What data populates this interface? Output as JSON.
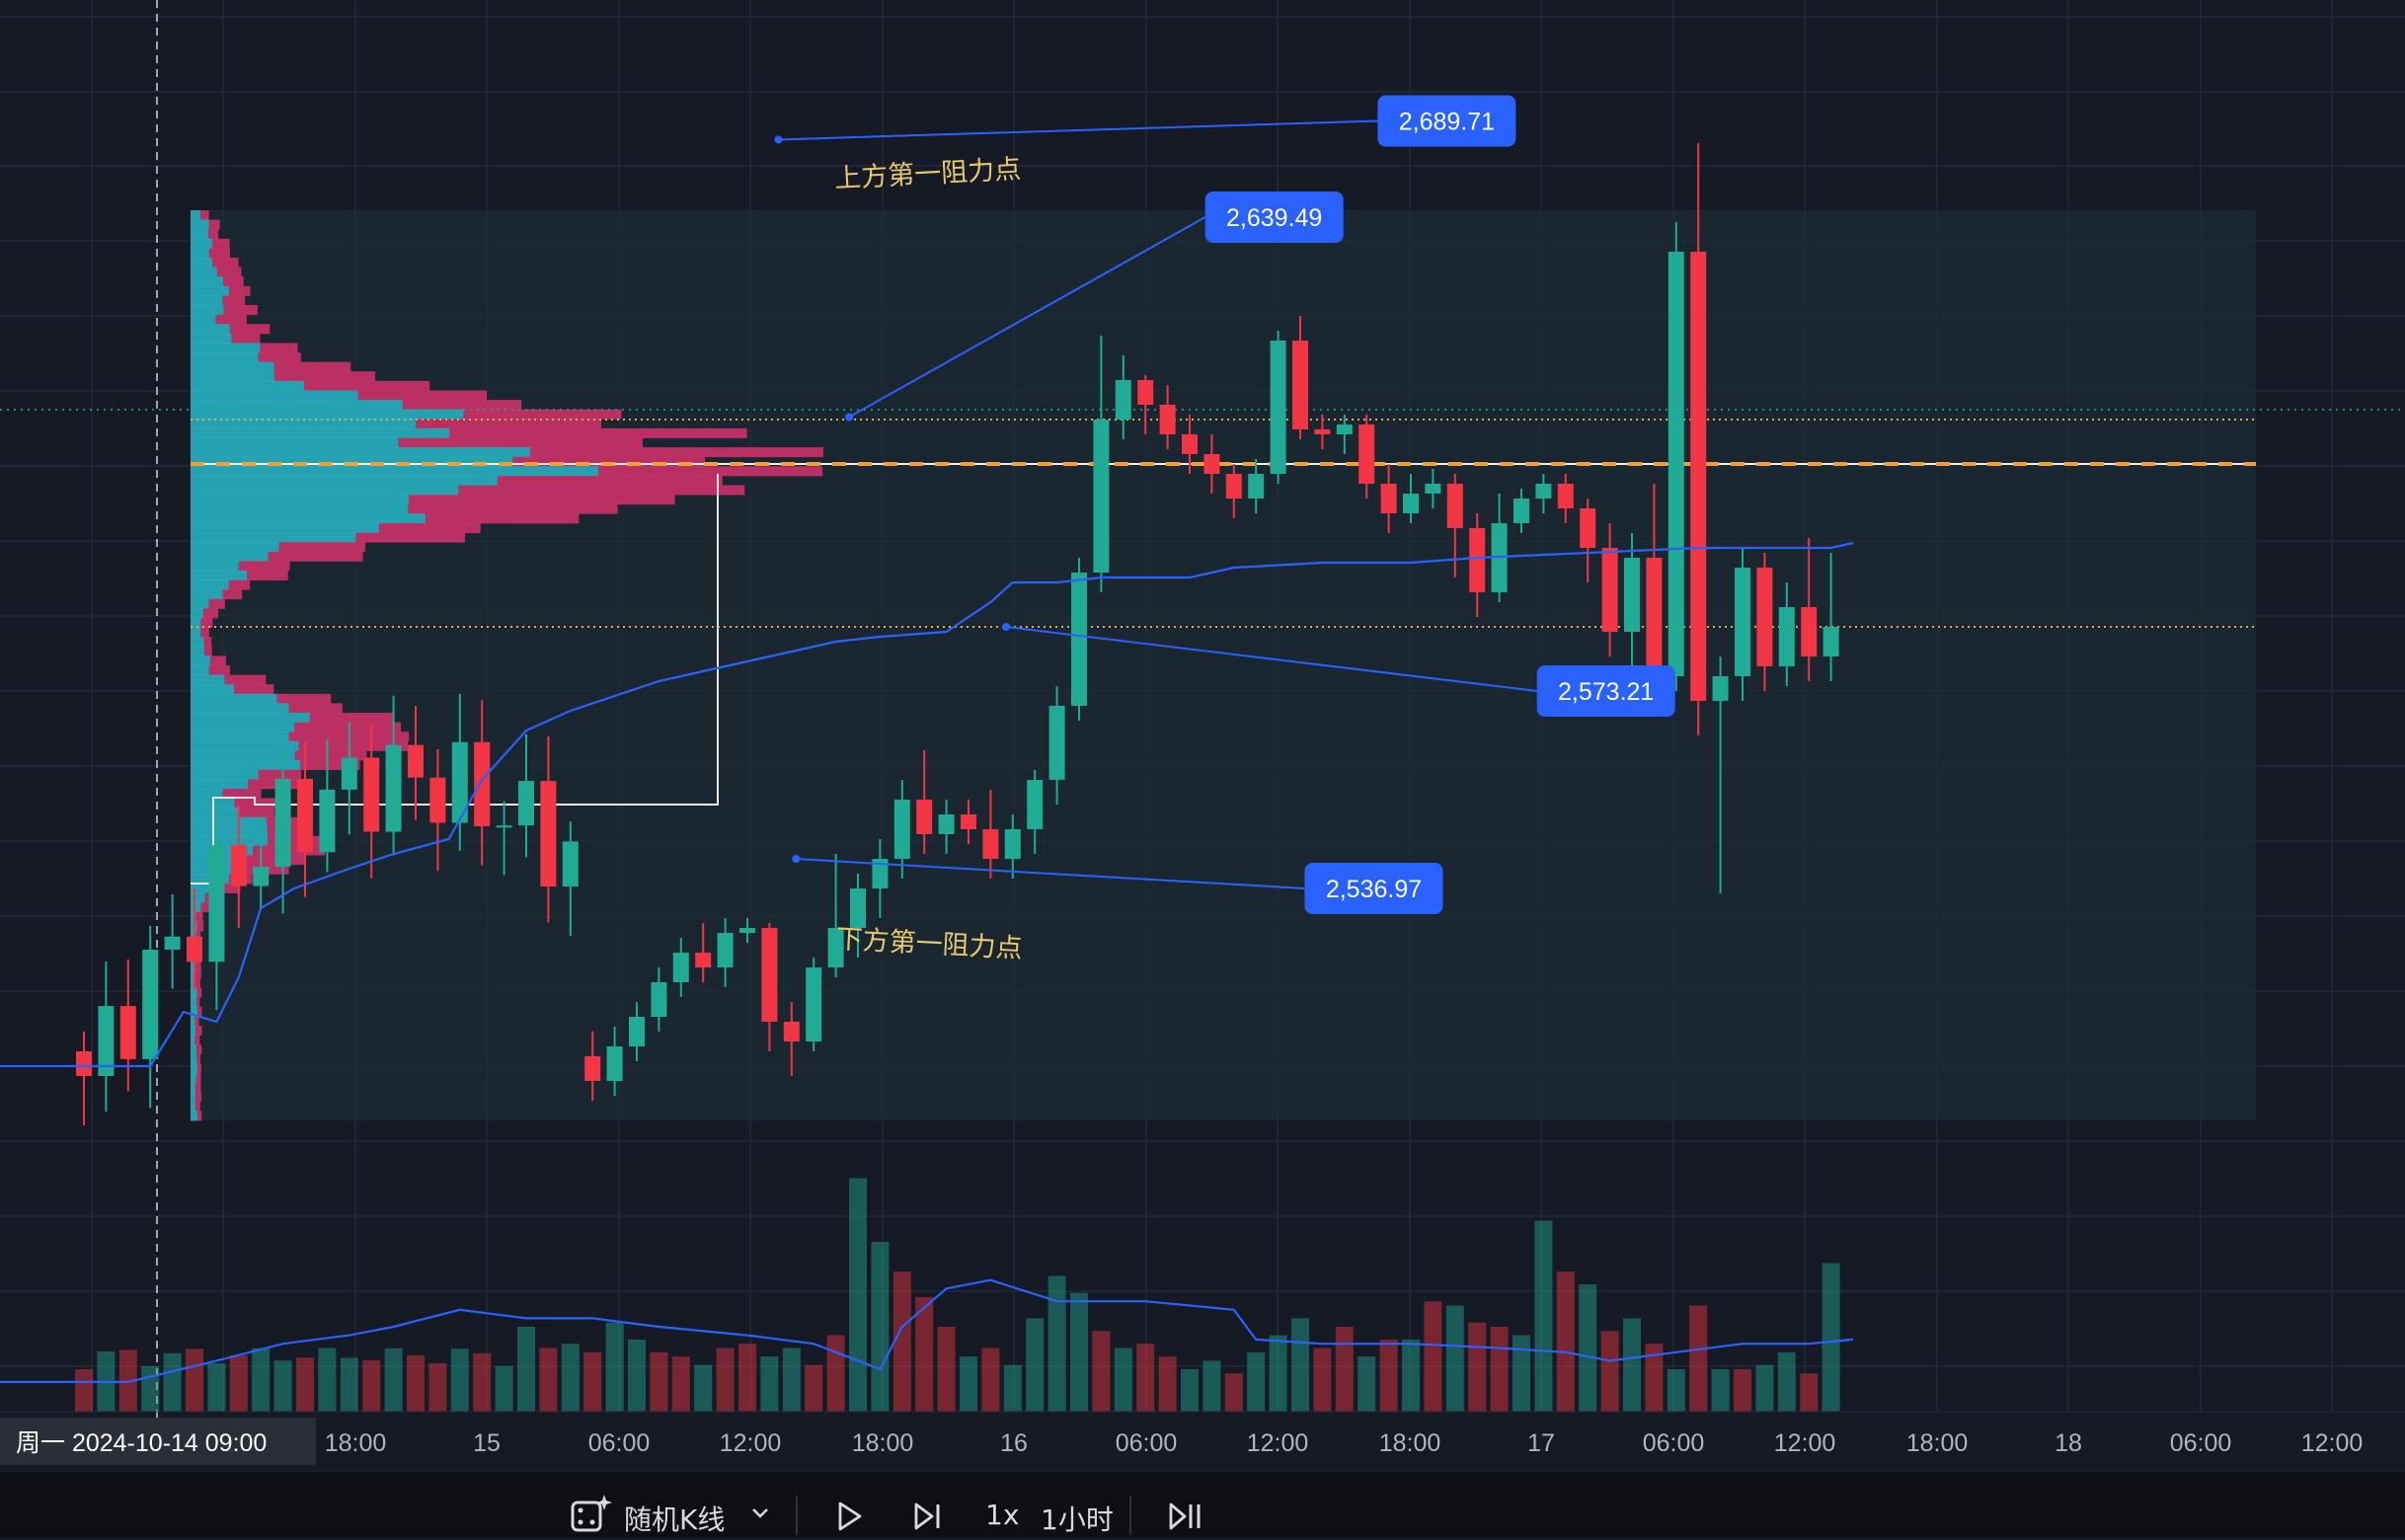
{
  "chart_data": {
    "type": "candlestick",
    "interval": "1小时",
    "y_range": [
      2488,
      2718
    ],
    "x_range": [
      -3.8,
      80.5
    ],
    "x_ticks": [
      {
        "label": "18:00"
      },
      {
        "label": "15"
      },
      {
        "label": "06:00"
      },
      {
        "label": "12:00"
      },
      {
        "label": "18:00"
      },
      {
        "label": "16"
      },
      {
        "label": "06:00"
      },
      {
        "label": "12:00"
      },
      {
        "label": "18:00"
      },
      {
        "label": "17"
      },
      {
        "label": "06:00"
      },
      {
        "label": "12:00"
      },
      {
        "label": "18:00"
      },
      {
        "label": "18"
      },
      {
        "label": "06:00"
      },
      {
        "label": "12:00"
      }
    ],
    "crosshair_label": "周一 2024-10-14   09:00",
    "colors": {
      "up": "#22ab94",
      "down": "#f23645",
      "ma": "#2962ff",
      "badge": "#2962ff",
      "label": "#e6c86e",
      "dotted_level": "#d7b24a",
      "poc": "#f2a033",
      "profile_up": "#27b8c8",
      "profile_down": "#d6336c",
      "range_box": "#1d2b33"
    },
    "candles": [
      [
        2504,
        2499,
        2509,
        2495,
        22
      ],
      [
        2499,
        2506,
        2510,
        2496,
        20
      ],
      [
        2506,
        2512,
        2515,
        2503,
        18
      ],
      [
        2512,
        2519,
        2522,
        2509,
        16
      ],
      [
        2519,
        2525,
        2528,
        2516,
        20
      ],
      [
        2525,
        2522,
        2531,
        2519,
        22
      ],
      [
        2522,
        2529,
        2532,
        2518,
        28
      ],
      [
        2529,
        2530,
        2532,
        2527,
        14
      ],
      [
        2530,
        2511,
        2531,
        2505,
        20
      ],
      [
        2511,
        2507,
        2515,
        2500,
        18
      ],
      [
        2507,
        2522,
        2524,
        2505,
        24
      ],
      [
        2522,
        2530,
        2545,
        2520,
        108
      ],
      [
        2530,
        2538,
        2541,
        2524,
        84
      ],
      [
        2538,
        2544,
        2548,
        2532,
        52
      ],
      [
        2544,
        2556,
        2560,
        2540,
        36
      ],
      [
        2556,
        2549,
        2566,
        2545,
        40
      ],
      [
        2549,
        2553,
        2556,
        2545,
        34
      ],
      [
        2553,
        2550,
        2556,
        2547,
        28
      ],
      [
        2550,
        2544,
        2558,
        2540,
        24
      ],
      [
        2544,
        2550,
        2553,
        2540,
        20
      ],
      [
        2550,
        2560,
        2562,
        2545,
        30
      ],
      [
        2560,
        2575,
        2579,
        2555,
        46
      ],
      [
        2575,
        2602,
        2605,
        2572,
        62
      ],
      [
        2602,
        2633,
        2650,
        2598,
        136
      ],
      [
        2633,
        2641,
        2646,
        2629,
        82
      ],
      [
        2641,
        2636,
        2642,
        2630,
        40
      ],
      [
        2636,
        2630,
        2640,
        2627,
        46
      ],
      [
        2630,
        2626,
        2634,
        2622,
        40
      ],
      [
        2626,
        2622,
        2630,
        2618,
        32
      ],
      [
        2622,
        2617,
        2624,
        2613,
        24
      ],
      [
        2617,
        2622,
        2625,
        2614,
        22
      ],
      [
        2622,
        2649,
        2651,
        2620,
        34
      ],
      [
        2649,
        2631,
        2654,
        2629,
        30
      ],
      [
        2631,
        2630,
        2634,
        2627,
        26
      ],
      [
        2630,
        2632,
        2634,
        2626,
        30
      ],
      [
        2632,
        2620,
        2634,
        2617,
        28
      ],
      [
        2620,
        2614,
        2624,
        2610,
        26
      ],
      [
        2614,
        2618,
        2622,
        2612,
        32
      ],
      [
        2618,
        2620,
        2623,
        2615,
        30
      ],
      [
        2620,
        2611,
        2622,
        2601,
        26
      ],
      [
        2611,
        2598,
        2614,
        2593,
        36
      ],
      [
        2598,
        2612,
        2618,
        2596,
        40
      ],
      [
        2612,
        2617,
        2619,
        2610,
        20
      ],
      [
        2617,
        2620,
        2622,
        2614,
        16
      ],
      [
        2620,
        2615,
        2622,
        2612,
        18
      ],
      [
        2615,
        2607,
        2617,
        2600,
        34
      ],
      [
        2607,
        2590,
        2612,
        2585,
        28
      ],
      [
        2590,
        2605,
        2610,
        2580,
        36
      ],
      [
        2605,
        2581,
        2620,
        2575,
        92
      ],
      [
        2581,
        2667,
        2673,
        2578,
        210
      ],
      [
        2667,
        2576,
        2689,
        2569,
        260
      ],
      [
        2576,
        2581,
        2585,
        2537,
        188
      ],
      [
        2581,
        2603,
        2607,
        2576,
        112
      ],
      [
        2603,
        2583,
        2606,
        2578,
        74
      ],
      [
        2583,
        2595,
        2600,
        2579,
        50
      ],
      [
        2595,
        2585,
        2609,
        2580,
        42
      ],
      [
        2585,
        2591,
        2606,
        2580,
        48
      ]
    ],
    "volume_tail": [
      [
        1,
        40
      ],
      [
        0,
        30
      ],
      [
        1,
        32
      ],
      [
        0,
        28
      ],
      [
        1,
        42
      ],
      [
        1,
        34
      ],
      [
        0,
        28
      ],
      [
        0,
        26
      ],
      [
        1,
        22
      ],
      [
        0,
        30
      ],
      [
        0,
        32
      ],
      [
        1,
        26
      ],
      [
        1,
        30
      ],
      [
        0,
        22
      ],
      [
        0,
        36
      ],
      [
        1,
        110
      ],
      [
        1,
        80
      ],
      [
        0,
        66
      ],
      [
        0,
        54
      ],
      [
        0,
        40
      ],
      [
        1,
        26
      ],
      [
        0,
        30
      ],
      [
        1,
        22
      ],
      [
        1,
        44
      ],
      [
        1,
        64
      ],
      [
        1,
        56
      ],
      [
        0,
        38
      ],
      [
        1,
        30
      ],
      [
        0,
        32
      ],
      [
        0,
        26
      ],
      [
        1,
        20
      ],
      [
        1,
        24
      ],
      [
        0,
        18
      ],
      [
        1,
        28
      ],
      [
        1,
        36
      ],
      [
        1,
        44
      ],
      [
        0,
        30
      ],
      [
        0,
        40
      ],
      [
        1,
        26
      ],
      [
        0,
        34
      ],
      [
        1,
        34
      ],
      [
        0,
        52
      ],
      [
        1,
        50
      ],
      [
        0,
        42
      ],
      [
        0,
        40
      ],
      [
        1,
        36
      ],
      [
        1,
        90
      ],
      [
        0,
        66
      ],
      [
        1,
        60
      ],
      [
        0,
        38
      ],
      [
        1,
        44
      ],
      [
        0,
        32
      ],
      [
        1,
        20
      ],
      [
        0,
        50
      ],
      [
        1,
        20
      ],
      [
        0,
        20
      ],
      [
        1,
        22
      ],
      [
        1,
        28
      ],
      [
        0,
        18
      ],
      [
        1,
        70
      ]
    ],
    "ma_line": [
      [
        -3.8,
        2502
      ],
      [
        3,
        2502
      ],
      [
        4.5,
        2513
      ],
      [
        6,
        2511
      ],
      [
        7,
        2520
      ],
      [
        8,
        2534
      ],
      [
        9.5,
        2538
      ],
      [
        12,
        2542
      ],
      [
        14,
        2545
      ],
      [
        16.5,
        2548
      ],
      [
        18,
        2560
      ],
      [
        20,
        2570
      ],
      [
        22,
        2574
      ],
      [
        24,
        2577
      ],
      [
        26,
        2580
      ],
      [
        28,
        2582
      ],
      [
        30,
        2584
      ],
      [
        32,
        2586
      ],
      [
        34,
        2588
      ],
      [
        36,
        2589
      ],
      [
        39,
        2590
      ],
      [
        41,
        2596
      ],
      [
        42,
        2600
      ],
      [
        44,
        2600
      ],
      [
        46,
        2601
      ],
      [
        50,
        2601
      ],
      [
        52,
        2603
      ],
      [
        56,
        2604
      ],
      [
        60,
        2604
      ],
      [
        63,
        2605
      ],
      [
        68,
        2606
      ],
      [
        73,
        2607
      ],
      [
        79,
        2607
      ],
      [
        80,
        2608
      ]
    ],
    "vol_ma_line": [
      [
        -3.8,
        14
      ],
      [
        2,
        14
      ],
      [
        6,
        24
      ],
      [
        9,
        32
      ],
      [
        12,
        36
      ],
      [
        14,
        40
      ],
      [
        17,
        48
      ],
      [
        20,
        44
      ],
      [
        23,
        44
      ],
      [
        26,
        40
      ],
      [
        30,
        36
      ],
      [
        33,
        32
      ],
      [
        36,
        20
      ],
      [
        37,
        40
      ],
      [
        39,
        58
      ],
      [
        41,
        62
      ],
      [
        44,
        52
      ],
      [
        48,
        52
      ],
      [
        52,
        48
      ],
      [
        53,
        34
      ],
      [
        56,
        32
      ],
      [
        60,
        32
      ],
      [
        64,
        30
      ],
      [
        67,
        28
      ],
      [
        69,
        24
      ],
      [
        72,
        28
      ],
      [
        75,
        32
      ],
      [
        78,
        32
      ],
      [
        80,
        34
      ]
    ],
    "levels": {
      "dotted_upper": 2633,
      "poc": 2624,
      "dotted_lower": 2591,
      "top_dotted": 2635
    },
    "annotations": [
      {
        "text": "上方第一阻力点",
        "x": 34.5,
        "y": 2692
      },
      {
        "text": "下方第一阻力点",
        "x": 34.5,
        "y": 2536
      }
    ],
    "callouts": [
      {
        "value": "2,689.71",
        "x1": 31.4,
        "y1": 2689.71,
        "x2": 58.5,
        "y2": 2693.5
      },
      {
        "value": "2,639.49",
        "x1": 34.6,
        "y1": 2633.5,
        "x2": 50.7,
        "y2": 2674
      },
      {
        "value": "2,573.21",
        "x1": 41.7,
        "y1": 2591,
        "x2": 65.7,
        "y2": 2578
      },
      {
        "value": "2,536.97",
        "x1": 32.2,
        "y1": 2544,
        "x2": 55.2,
        "y2": 2538
      }
    ]
  },
  "toolbar": {
    "random_label": "随机K线",
    "speed_label": "1x",
    "interval_label": "1小时"
  }
}
